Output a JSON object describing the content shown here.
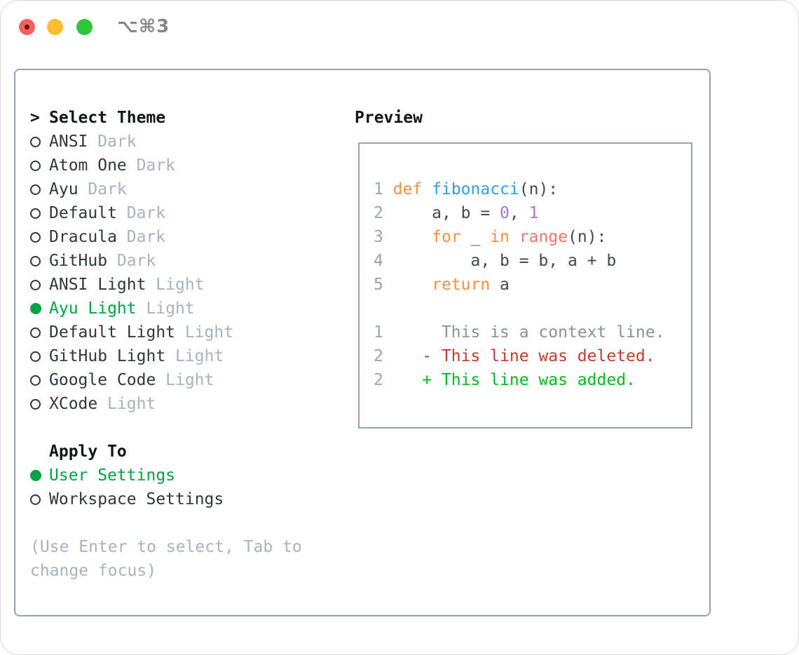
{
  "palette": {
    "tl_red": "#f4605a",
    "tl_red_dot": "#6e100c",
    "tl_yellow": "#fcbd30",
    "tl_green": "#2fc63c",
    "shortcut_gray": "#85878a",
    "panel_border": "#9aa3ad",
    "text_black": "#14171a",
    "text_dark": "#30373e",
    "text_muted": "#a9b3bd",
    "select_green": "#00a344",
    "num_gray": "#9aa5b1",
    "code_default": "#434a52",
    "kw_orange": "#fa8d3e",
    "fn_blue": "#2ea0ea",
    "fn_red": "#f2756b",
    "lit_purple": "#a37acc",
    "ctx_gray": "#8b9298",
    "del_red": "#c43c2d",
    "add_green": "#00bd1c"
  },
  "window": {
    "shortcut": "⌥⌘3",
    "traffic_lights": [
      "close",
      "minimize",
      "zoom"
    ]
  },
  "theme_selector": {
    "prompt": ">",
    "title": "Select Theme",
    "items": [
      {
        "name": "ANSI",
        "variant": "Dark",
        "selected": false
      },
      {
        "name": "Atom One",
        "variant": "Dark",
        "selected": false
      },
      {
        "name": "Ayu",
        "variant": "Dark",
        "selected": false
      },
      {
        "name": "Default",
        "variant": "Dark",
        "selected": false
      },
      {
        "name": "Dracula",
        "variant": "Dark",
        "selected": false
      },
      {
        "name": "GitHub",
        "variant": "Dark",
        "selected": false
      },
      {
        "name": "ANSI Light",
        "variant": "Light",
        "selected": false
      },
      {
        "name": "Ayu Light",
        "variant": "Light",
        "selected": true
      },
      {
        "name": "Default Light",
        "variant": "Light",
        "selected": false
      },
      {
        "name": "GitHub Light",
        "variant": "Light",
        "selected": false
      },
      {
        "name": "Google Code",
        "variant": "Light",
        "selected": false
      },
      {
        "name": "XCode",
        "variant": "Light",
        "selected": false
      }
    ]
  },
  "apply_to": {
    "title": "Apply To",
    "items": [
      {
        "name": "User Settings",
        "selected": true
      },
      {
        "name": "Workspace Settings",
        "selected": false
      }
    ]
  },
  "hints": [
    "(Use Enter to select, Tab to",
    "change focus)"
  ],
  "preview": {
    "title": "Preview",
    "lines": [
      [
        {
          "t": "1",
          "c": "num"
        },
        {
          "t": " ",
          "c": "code"
        },
        {
          "t": "def",
          "c": "kw"
        },
        {
          "t": " ",
          "c": "code"
        },
        {
          "t": "fibonacci",
          "c": "fn"
        },
        {
          "t": "(n):",
          "c": "code"
        }
      ],
      [
        {
          "t": "2",
          "c": "num"
        },
        {
          "t": "     ",
          "c": "code"
        },
        {
          "t": "a, b = ",
          "c": "code"
        },
        {
          "t": "0",
          "c": "purple"
        },
        {
          "t": ", ",
          "c": "code"
        },
        {
          "t": "1",
          "c": "purple"
        }
      ],
      [
        {
          "t": "3",
          "c": "num"
        },
        {
          "t": "     ",
          "c": "code"
        },
        {
          "t": "for",
          "c": "kw"
        },
        {
          "t": " _ ",
          "c": "code"
        },
        {
          "t": "in",
          "c": "kw"
        },
        {
          "t": " ",
          "c": "code"
        },
        {
          "t": "range",
          "c": "red"
        },
        {
          "t": "(n):",
          "c": "code"
        }
      ],
      [
        {
          "t": "4",
          "c": "num"
        },
        {
          "t": "         ",
          "c": "code"
        },
        {
          "t": "a, b = b, a + b",
          "c": "code"
        }
      ],
      [
        {
          "t": "5",
          "c": "num"
        },
        {
          "t": "     ",
          "c": "code"
        },
        {
          "t": "return",
          "c": "kw"
        },
        {
          "t": " a",
          "c": "code"
        }
      ],
      [],
      [
        {
          "t": "1",
          "c": "num"
        },
        {
          "t": "      ",
          "c": "code"
        },
        {
          "t": "This is a context line.",
          "c": "ctx"
        }
      ],
      [
        {
          "t": "2",
          "c": "num"
        },
        {
          "t": "    ",
          "c": "code"
        },
        {
          "t": "- This line was deleted.",
          "c": "del"
        }
      ],
      [
        {
          "t": "2",
          "c": "num"
        },
        {
          "t": "    ",
          "c": "code"
        },
        {
          "t": "+ This line was added.",
          "c": "add"
        }
      ]
    ]
  }
}
